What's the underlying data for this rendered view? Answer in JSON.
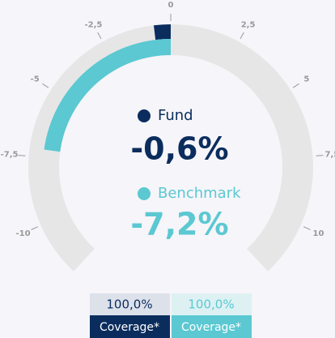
{
  "chart_data": {
    "type": "gauge",
    "ylim": [
      -12,
      12
    ],
    "yticks": [
      {
        "value": -10,
        "label": "-10"
      },
      {
        "value": -7.5,
        "label": "-7,5"
      },
      -5,
      {
        "value": -2.5,
        "label": "-2,5"
      },
      0,
      {
        "value": 2.5,
        "label": "2,5"
      },
      5,
      {
        "value": 7.5,
        "label": "7,5"
      },
      10
    ],
    "coverage_label": "Coverage*",
    "series": [
      {
        "name": "Fund",
        "color": "#0b2d5e",
        "values": [
          -0.6
        ],
        "value_labels": [
          "-0,6%"
        ],
        "coverage": 100,
        "coverage_label": "100,0%"
      },
      {
        "name": "Benchmark",
        "color": "#5bc8d2",
        "values": [
          -7.2
        ],
        "value_labels": [
          "-7,2%"
        ],
        "coverage": 100,
        "coverage_label": "100,0%"
      }
    ]
  }
}
